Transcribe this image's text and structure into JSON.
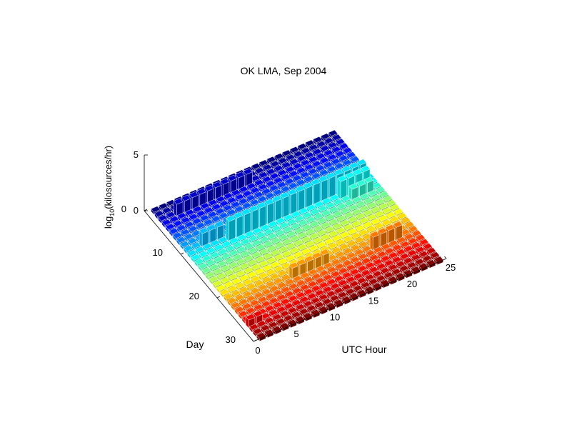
{
  "chart_data": {
    "type": "bar3d",
    "title": "OK LMA, Sep 2004",
    "xlabel": "UTC Hour",
    "ylabel": "Day",
    "zlabel_main": "log",
    "zlabel_sub": "10",
    "zlabel_tail": "(kilosources/hr)",
    "xlim": [
      0,
      25
    ],
    "ylim": [
      0,
      30
    ],
    "zlim": [
      0,
      5
    ],
    "xticks": [
      "0",
      "5",
      "10",
      "15",
      "20",
      "25"
    ],
    "yticks": [
      "0",
      "10",
      "20",
      "30"
    ],
    "zticks": [
      "0",
      "5"
    ],
    "colormap": "jet",
    "grid": false,
    "active_days": [
      {
        "day": 3,
        "hours": [
          3,
          4,
          5,
          6,
          7,
          8,
          9,
          10,
          11,
          12
        ],
        "log_value": 0.9
      },
      {
        "day": 10,
        "hours": [
          3,
          4,
          5
        ],
        "log_value": 1.0
      },
      {
        "day": 11,
        "hours": [
          6,
          7,
          8,
          9,
          10,
          11,
          12,
          13,
          14,
          15,
          16,
          17,
          18,
          19,
          20,
          21,
          22,
          23
        ],
        "log_value": 1.6
      },
      {
        "day": 12,
        "hours": [
          20,
          21,
          22,
          23
        ],
        "log_value": 1.4
      },
      {
        "day": 13,
        "hours": [
          21,
          22,
          23
        ],
        "log_value": 0.8
      },
      {
        "day": 22,
        "hours": [
          9,
          10,
          11,
          12,
          13
        ],
        "log_value": 0.8
      },
      {
        "day": 23,
        "hours": [
          19,
          20,
          21,
          22
        ],
        "log_value": 1.0
      },
      {
        "day": 27,
        "hours": [
          1,
          2
        ],
        "log_value": 0.5
      }
    ]
  }
}
